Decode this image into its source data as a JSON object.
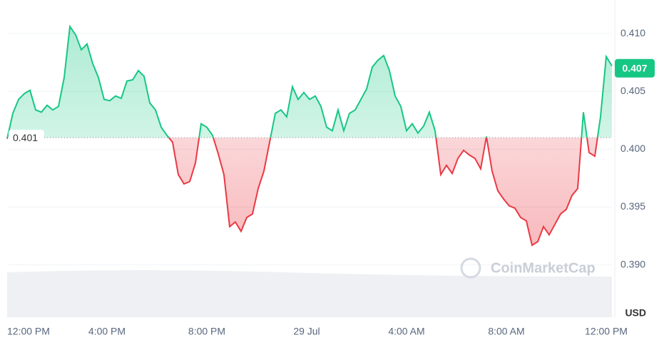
{
  "chart_data": {
    "type": "line",
    "values": [
      0.4009,
      0.4031,
      0.4043,
      0.4048,
      0.4051,
      0.4034,
      0.4032,
      0.4038,
      0.4034,
      0.4037,
      0.4062,
      0.4106,
      0.4099,
      0.4086,
      0.4091,
      0.4074,
      0.4062,
      0.4043,
      0.4042,
      0.4046,
      0.4044,
      0.4059,
      0.406,
      0.4068,
      0.4063,
      0.404,
      0.4034,
      0.4019,
      0.4012,
      0.4006,
      0.3978,
      0.397,
      0.3972,
      0.3988,
      0.4022,
      0.4019,
      0.4012,
      0.3996,
      0.3978,
      0.3933,
      0.3937,
      0.3929,
      0.3941,
      0.3944,
      0.3966,
      0.3981,
      0.4006,
      0.4031,
      0.4034,
      0.4028,
      0.4054,
      0.4043,
      0.4049,
      0.4043,
      0.4046,
      0.4037,
      0.4019,
      0.4016,
      0.4034,
      0.4016,
      0.4031,
      0.4034,
      0.4043,
      0.4052,
      0.4071,
      0.4077,
      0.4081,
      0.4068,
      0.4046,
      0.4037,
      0.4016,
      0.4022,
      0.4014,
      0.402,
      0.4032,
      0.4016,
      0.3978,
      0.3986,
      0.3979,
      0.3992,
      0.3999,
      0.3995,
      0.3992,
      0.3983,
      0.4011,
      0.3981,
      0.3964,
      0.3957,
      0.3951,
      0.3949,
      0.3941,
      0.3938,
      0.3917,
      0.392,
      0.3933,
      0.3926,
      0.3935,
      0.3944,
      0.3948,
      0.396,
      0.3966,
      0.4032,
      0.3997,
      0.3994,
      0.4028,
      0.408,
      0.4072
    ],
    "baseline": 0.401,
    "price_label": 0.407,
    "color_up": "#16c784",
    "color_down": "#ea3943",
    "xlim": [
      0,
      106
    ],
    "xticks": [
      {
        "value": 0,
        "label": "12:00 PM"
      },
      {
        "value": 17.5,
        "label": "4:00 PM"
      },
      {
        "value": 35,
        "label": "8:00 PM"
      },
      {
        "value": 52.5,
        "label": "29 Jul"
      },
      {
        "value": 70,
        "label": "4:00 AM"
      },
      {
        "value": 87.5,
        "label": "8:00 AM"
      },
      {
        "value": 105,
        "label": "12:00 PM"
      }
    ],
    "ylim": [
      0.3864,
      0.4129
    ],
    "yticks": [
      {
        "value": 0.39,
        "label": "0.390"
      },
      0.395,
      {
        "value": 0.4,
        "label": "0.400"
      },
      0.405,
      {
        "value": 0.41,
        "label": "0.410"
      }
    ],
    "grid": true,
    "currency": "USD",
    "watermark": "CoinMarketCap"
  }
}
